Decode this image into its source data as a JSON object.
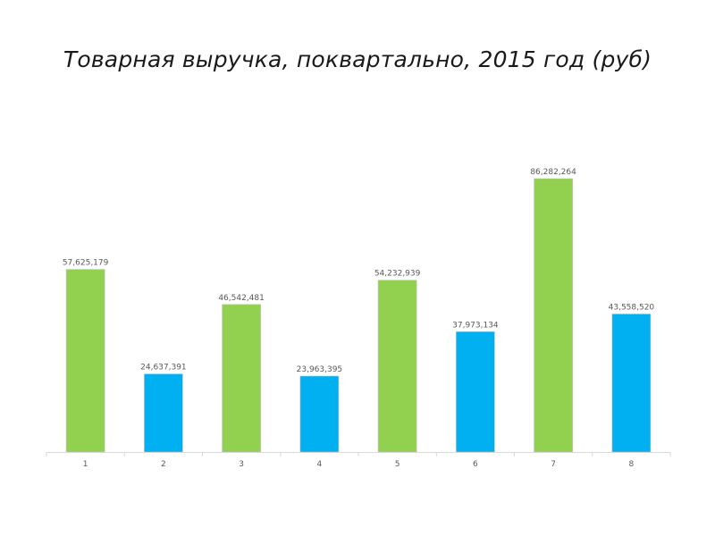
{
  "chart_data": {
    "type": "bar",
    "title": "Товарная выручка, поквартально, 2015 год (руб)",
    "xlabel": "",
    "ylabel": "",
    "categories": [
      "1",
      "2",
      "3",
      "4",
      "5",
      "6",
      "7",
      "8"
    ],
    "values": [
      57625179,
      24637391,
      46542481,
      23963395,
      54232939,
      37973134,
      86282264,
      43558520
    ],
    "labels": [
      "57,625,179",
      "24,637,391",
      "46,542,481",
      "23,963,395",
      "54,232,939",
      "37,973,134",
      "86,282,264",
      "43,558,520"
    ],
    "bar_colors": [
      "#92d050",
      "#00b0f0",
      "#92d050",
      "#00b0f0",
      "#92d050",
      "#00b0f0",
      "#92d050",
      "#00b0f0"
    ],
    "ylim": [
      0,
      86282264
    ],
    "grid": false,
    "legend": "none",
    "y_axis_visible": false
  },
  "colors": {
    "axis": "#d9d9d9",
    "bar_border": "#bfbfbf"
  }
}
